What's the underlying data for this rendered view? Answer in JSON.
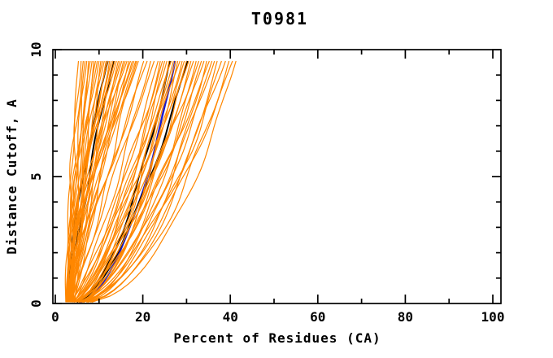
{
  "window": {
    "background": "#FFFFFF"
  },
  "chart_data": {
    "type": "line",
    "title": "T0981",
    "xlabel": "Percent of Residues (CA)",
    "ylabel": "Distance Cutoff, A",
    "xlim": [
      0,
      100
    ],
    "ylim": [
      0,
      10
    ],
    "x_major_ticks": [
      0,
      20,
      40,
      60,
      80,
      100
    ],
    "x_minor_ticks": [
      10,
      30,
      50,
      70,
      90
    ],
    "y_major_ticks": [
      0,
      5,
      10
    ],
    "y_minor_ticks": [
      1,
      2,
      3,
      4,
      6,
      7,
      8,
      9
    ],
    "grid": false,
    "legend": "none",
    "frame_color": "#000000",
    "d_top": 9.55,
    "curve_format": "[percent_at_cutoff_0, percent_at_cutoff_9.55, shape_exponent] ; x(d) = x0 + (xt - x0) * (d/9.55)^p",
    "series": [
      {
        "name": "prediction-ensemble",
        "color": "#FF8700",
        "width": 1.2,
        "wiggle": 0.55,
        "curves": [
          [
            2.6,
            5.3,
            1.6
          ],
          [
            3.0,
            5.9,
            1.5
          ],
          [
            2.4,
            6.4,
            1.7
          ],
          [
            3.3,
            6.8,
            1.4
          ],
          [
            2.8,
            7.2,
            1.55
          ],
          [
            3.6,
            7.6,
            1.3
          ],
          [
            2.5,
            8.0,
            1.65
          ],
          [
            3.1,
            8.4,
            1.45
          ],
          [
            3.9,
            8.8,
            1.25
          ],
          [
            2.7,
            9.2,
            1.5
          ],
          [
            3.4,
            9.6,
            1.35
          ],
          [
            2.9,
            10.0,
            1.6
          ],
          [
            4.2,
            10.4,
            1.2
          ],
          [
            3.2,
            10.8,
            1.4
          ],
          [
            2.6,
            11.2,
            1.55
          ],
          [
            3.7,
            11.6,
            1.3
          ],
          [
            3.0,
            12.0,
            1.45
          ],
          [
            4.4,
            12.4,
            1.15
          ],
          [
            2.8,
            12.8,
            1.5
          ],
          [
            3.5,
            13.2,
            1.25
          ],
          [
            3.1,
            13.6,
            1.4
          ],
          [
            2.7,
            14.0,
            1.55
          ],
          [
            4.0,
            14.4,
            1.2
          ],
          [
            3.3,
            14.8,
            1.35
          ],
          [
            2.9,
            15.2,
            1.45
          ],
          [
            3.8,
            15.6,
            1.15
          ],
          [
            3.2,
            16.0,
            1.3
          ],
          [
            2.6,
            16.4,
            1.5
          ],
          [
            4.3,
            16.8,
            1.1
          ],
          [
            3.0,
            17.2,
            1.35
          ],
          [
            3.6,
            17.6,
            1.2
          ],
          [
            2.8,
            18.0,
            1.4
          ],
          [
            3.4,
            18.4,
            1.25
          ],
          [
            4.1,
            18.6,
            1.05
          ],
          [
            3.1,
            19.0,
            1.3
          ],
          [
            3.5,
            20.2,
            0.95
          ],
          [
            2.9,
            21.0,
            1.1
          ],
          [
            4.2,
            21.8,
            0.85
          ],
          [
            3.3,
            22.6,
            1.0
          ],
          [
            3.7,
            23.5,
            0.75
          ],
          [
            4.5,
            24.0,
            0.6
          ],
          [
            3.2,
            24.5,
            0.8
          ],
          [
            4.0,
            25.0,
            0.65
          ],
          [
            3.5,
            25.5,
            0.72
          ],
          [
            4.8,
            26.0,
            0.55
          ],
          [
            3.0,
            26.5,
            0.78
          ],
          [
            4.3,
            27.0,
            0.62
          ],
          [
            3.8,
            27.5,
            0.7
          ],
          [
            5.0,
            28.0,
            0.52
          ],
          [
            3.4,
            28.5,
            0.75
          ],
          [
            4.1,
            29.0,
            0.6
          ],
          [
            3.6,
            29.5,
            0.68
          ],
          [
            4.6,
            30.0,
            0.55
          ],
          [
            3.2,
            30.5,
            0.72
          ],
          [
            4.4,
            31.0,
            0.58
          ],
          [
            3.9,
            31.6,
            0.65
          ],
          [
            5.1,
            32.2,
            0.5
          ],
          [
            3.5,
            32.8,
            0.7
          ],
          [
            4.2,
            33.4,
            0.56
          ],
          [
            3.7,
            34.0,
            0.62
          ],
          [
            4.9,
            34.6,
            0.48
          ],
          [
            3.3,
            35.2,
            0.66
          ],
          [
            4.5,
            35.8,
            0.54
          ],
          [
            4.0,
            36.4,
            0.6
          ],
          [
            5.2,
            37.0,
            0.46
          ],
          [
            4.3,
            38.0,
            0.52
          ],
          [
            3.8,
            38.9,
            0.58
          ],
          [
            4.7,
            39.7,
            0.48
          ],
          [
            4.1,
            40.5,
            0.55
          ],
          [
            4.9,
            41.3,
            0.45
          ]
        ]
      },
      {
        "name": "highlight-black",
        "color": "#000000",
        "width": 2.0,
        "wiggle": 0.3,
        "curves": [
          [
            2.7,
            12.0,
            1.45
          ],
          [
            3.1,
            13.3,
            1.25
          ],
          [
            3.7,
            26.2,
            0.55
          ],
          [
            4.4,
            30.2,
            0.62
          ]
        ]
      },
      {
        "name": "highlight-blue",
        "color": "#1A1ACC",
        "width": 2.4,
        "wiggle": 0.3,
        "curves": [
          [
            4.0,
            27.4,
            0.5
          ]
        ]
      }
    ]
  }
}
